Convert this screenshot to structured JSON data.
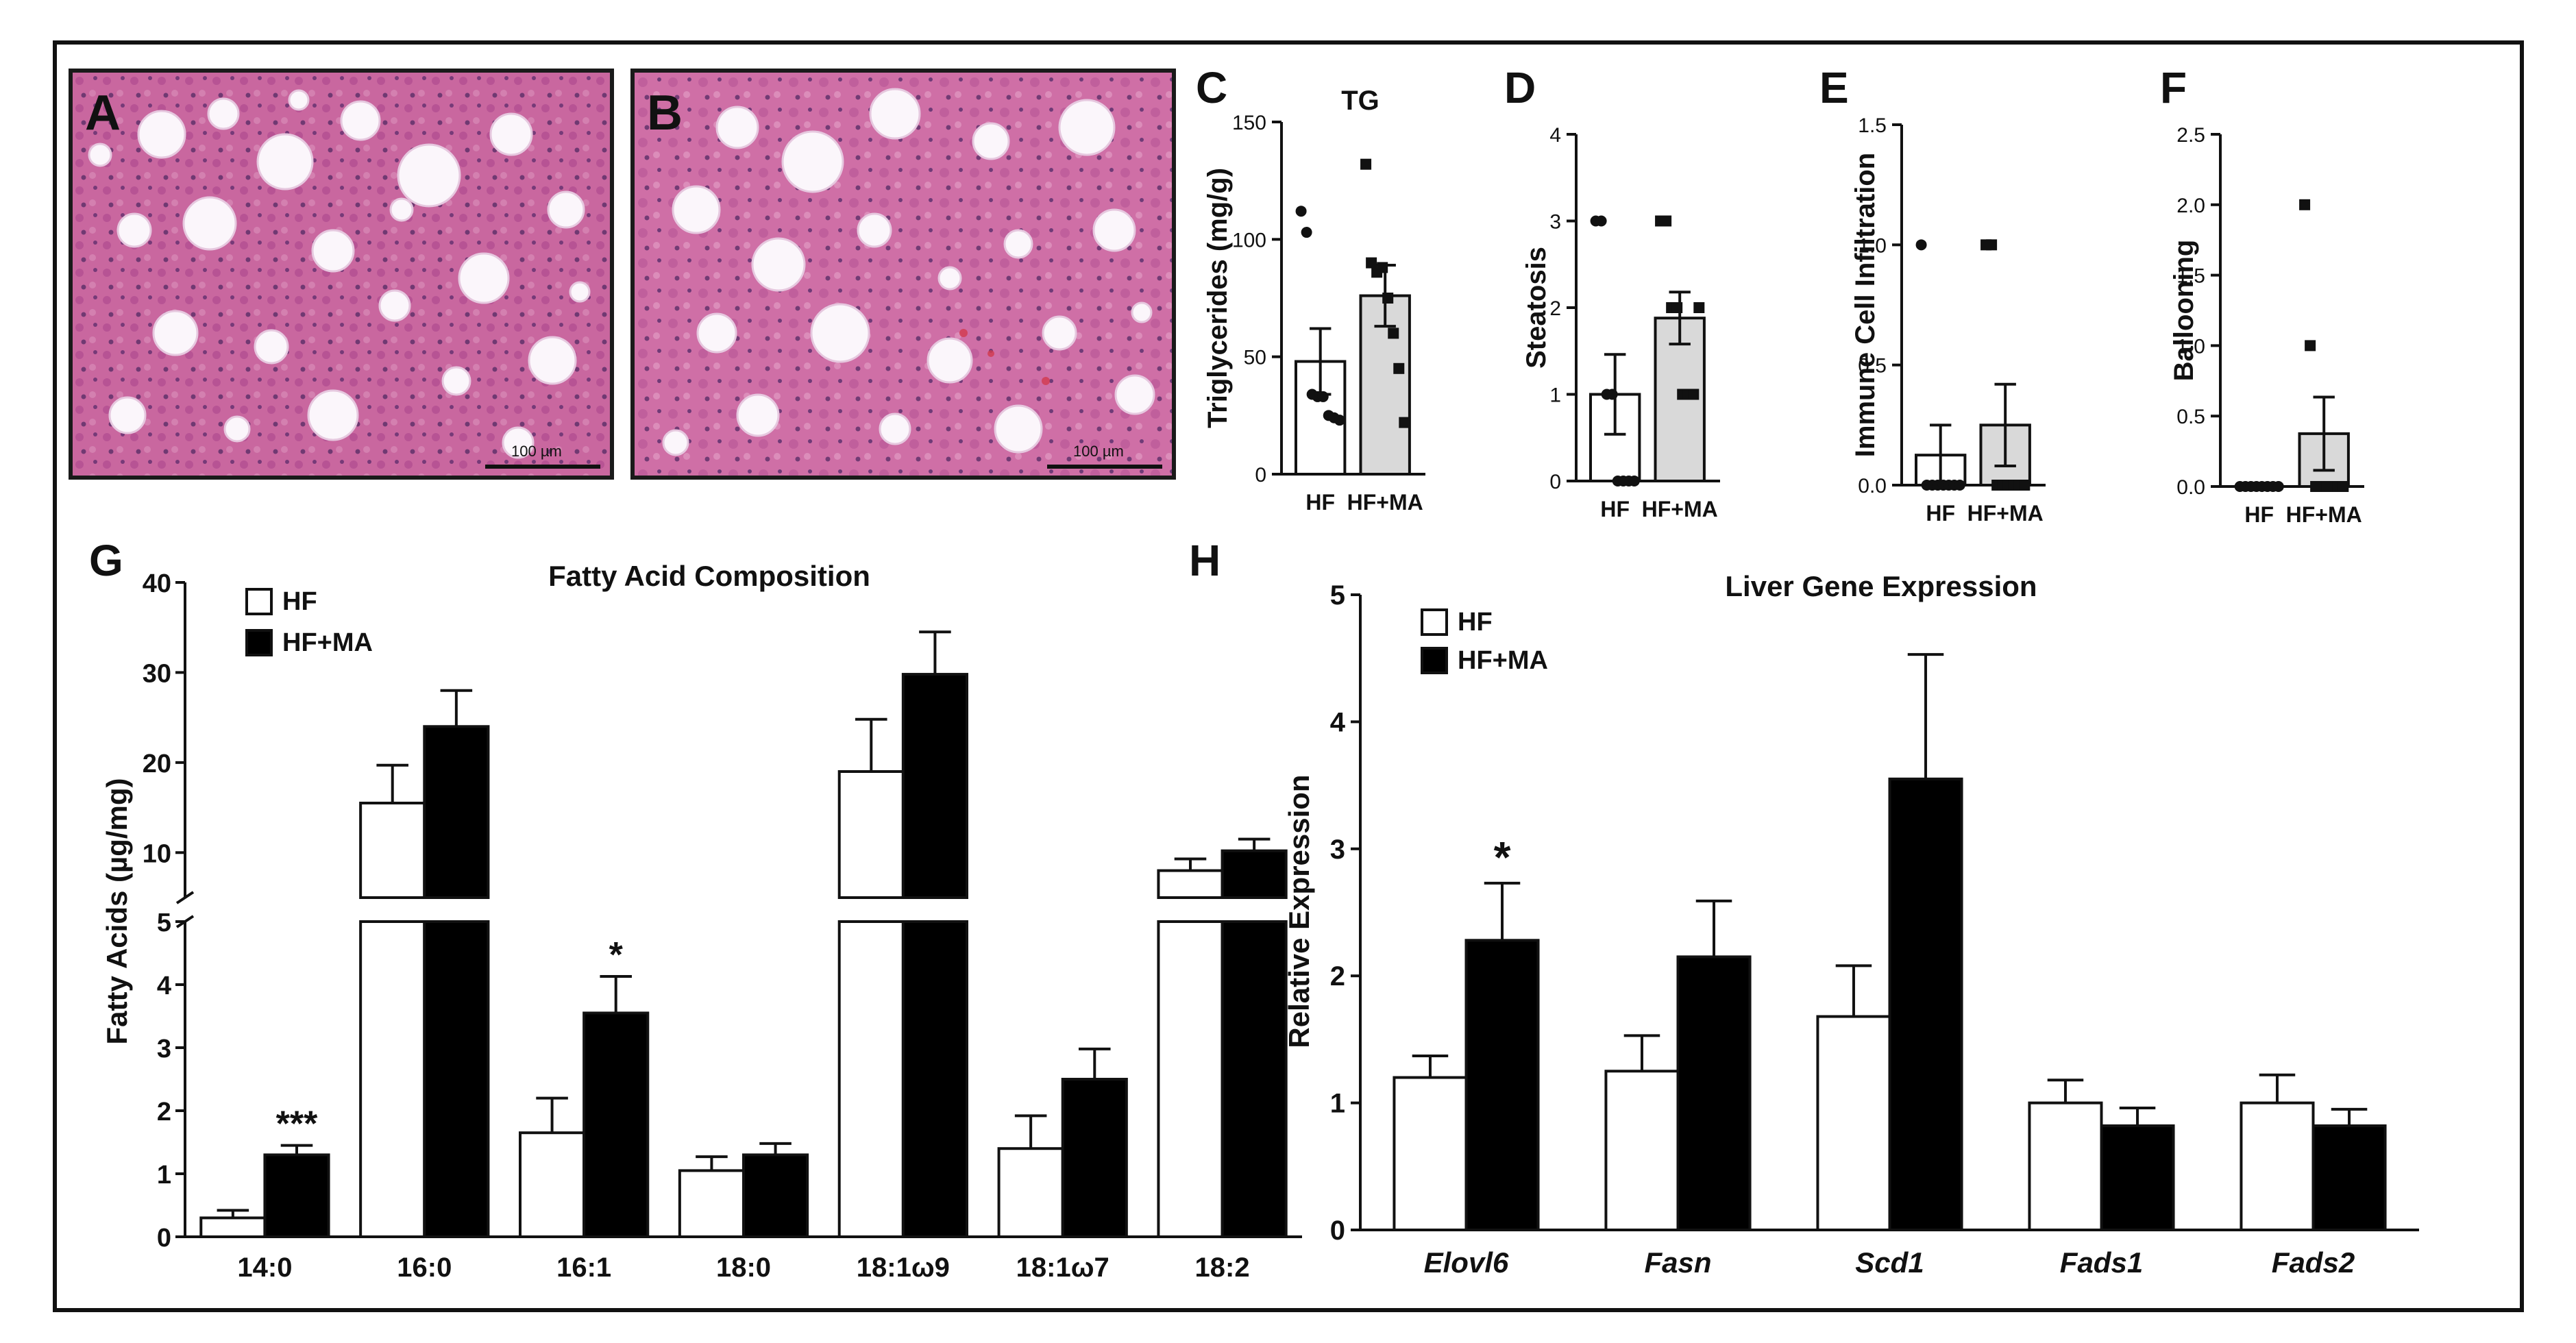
{
  "panels": {
    "A": {
      "letter": "A",
      "scale_bar": "100 µm"
    },
    "B": {
      "letter": "B",
      "scale_bar": "100 µm"
    }
  },
  "chart_data": [
    {
      "id": "C",
      "type": "bar",
      "panel_label": "C",
      "title": "TG",
      "ylabel": "Triglycerides (mg/g)",
      "ylim": [
        0,
        150
      ],
      "yticks": [
        0,
        50,
        100,
        150
      ],
      "ytick_labels": [
        "0",
        "50",
        "100",
        "150"
      ],
      "categories": [
        "HF",
        "HF+MA"
      ],
      "values": [
        48,
        76
      ],
      "errors": [
        14,
        13
      ],
      "points": [
        [
          112,
          103,
          34,
          33,
          33,
          25,
          24,
          23
        ],
        [
          132,
          90,
          86,
          88,
          75,
          60,
          45,
          22
        ]
      ]
    },
    {
      "id": "D",
      "type": "bar",
      "panel_label": "D",
      "title": "",
      "ylabel": "Steatosis",
      "ylim": [
        0,
        4
      ],
      "yticks": [
        0,
        1,
        2,
        3,
        4
      ],
      "ytick_labels": [
        "0",
        "1",
        "2",
        "3",
        "4"
      ],
      "categories": [
        "HF",
        "HF+MA"
      ],
      "values": [
        1.0,
        1.88
      ],
      "errors": [
        0.46,
        0.3
      ],
      "points": [
        [
          3,
          3,
          1,
          1,
          0,
          0,
          0,
          0
        ],
        [
          3,
          3,
          2,
          2,
          1,
          1,
          1,
          2
        ]
      ]
    },
    {
      "id": "E",
      "type": "bar",
      "panel_label": "E",
      "title": "",
      "ylabel": "Immune Cell Infiltration",
      "ylim": [
        0,
        1.5
      ],
      "yticks": [
        0,
        0.5,
        1.0,
        1.5
      ],
      "ytick_labels": [
        "0.0",
        "0.5",
        "1.0",
        "1.5"
      ],
      "categories": [
        "HF",
        "HF+MA"
      ],
      "values": [
        0.125,
        0.25
      ],
      "errors": [
        0.125,
        0.17
      ],
      "points": [
        [
          1,
          0,
          0,
          0,
          0,
          0,
          0,
          0
        ],
        [
          1,
          1,
          0,
          0,
          0,
          0,
          0,
          0
        ]
      ]
    },
    {
      "id": "F",
      "type": "bar",
      "panel_label": "F",
      "title": "",
      "ylabel": "Ballooning",
      "ylim": [
        0,
        2.5
      ],
      "yticks": [
        0,
        0.5,
        1.0,
        1.5,
        2.0,
        2.5
      ],
      "ytick_labels": [
        "0.0",
        "0.5",
        "1.0",
        "1.5",
        "2.0",
        "2.5"
      ],
      "categories": [
        "HF",
        "HF+MA"
      ],
      "values": [
        0,
        0.375
      ],
      "errors": [
        0,
        0.26
      ],
      "points": [
        [
          0,
          0,
          0,
          0,
          0,
          0,
          0,
          0
        ],
        [
          2,
          1,
          0,
          0,
          0,
          0,
          0,
          0
        ]
      ]
    },
    {
      "id": "G",
      "type": "bar",
      "panel_label": "G",
      "title": "Fatty Acid Composition",
      "ylabel": "Fatty Acids (µg/mg)",
      "y_axis_break": {
        "lower_range": [
          0,
          5
        ],
        "upper_range": [
          5,
          40
        ]
      },
      "yticks_lower": [
        "0",
        "1",
        "2",
        "3",
        "4",
        "5"
      ],
      "yticks_upper": [
        "10",
        "20",
        "30",
        "40"
      ],
      "legend": [
        "HF",
        "HF+MA"
      ],
      "categories": [
        "14:0",
        "16:0",
        "16:1",
        "18:0",
        "18:1ω9",
        "18:1ω7",
        "18:2"
      ],
      "series": [
        {
          "name": "HF",
          "color": "#ffffff",
          "values": [
            0.3,
            15.5,
            1.65,
            1.05,
            19.0,
            1.4,
            8.0
          ],
          "errors": [
            0.12,
            4.2,
            0.55,
            0.22,
            5.8,
            0.52,
            1.3
          ]
        },
        {
          "name": "HF+MA",
          "color": "#000000",
          "values": [
            1.3,
            24.0,
            3.55,
            1.3,
            29.8,
            2.5,
            10.2
          ],
          "errors": [
            0.15,
            4.0,
            0.58,
            0.18,
            4.7,
            0.48,
            1.3
          ]
        }
      ],
      "annotations": [
        {
          "category": "14:0",
          "text": "***"
        },
        {
          "category": "16:1",
          "text": "*"
        }
      ]
    },
    {
      "id": "H",
      "type": "bar",
      "panel_label": "H",
      "title": "Liver Gene Expression",
      "ylabel": "Relative Expression",
      "ylim": [
        0,
        5
      ],
      "yticks": [
        0,
        1,
        2,
        3,
        4,
        5
      ],
      "ytick_labels": [
        "0",
        "1",
        "2",
        "3",
        "4",
        "5"
      ],
      "legend": [
        "HF",
        "HF+MA"
      ],
      "categories": [
        "Elovl6",
        "Fasn",
        "Scd1",
        "Fads1",
        "Fads2"
      ],
      "series": [
        {
          "name": "HF",
          "color": "#ffffff",
          "values": [
            1.2,
            1.25,
            1.68,
            1.0,
            1.0
          ],
          "errors": [
            0.17,
            0.28,
            0.4,
            0.18,
            0.22
          ]
        },
        {
          "name": "HF+MA",
          "color": "#000000",
          "values": [
            2.28,
            2.15,
            3.55,
            0.82,
            0.82
          ],
          "errors": [
            0.45,
            0.44,
            0.98,
            0.14,
            0.13
          ]
        }
      ],
      "annotations": [
        {
          "category": "Elovl6",
          "text": "*"
        }
      ]
    }
  ]
}
